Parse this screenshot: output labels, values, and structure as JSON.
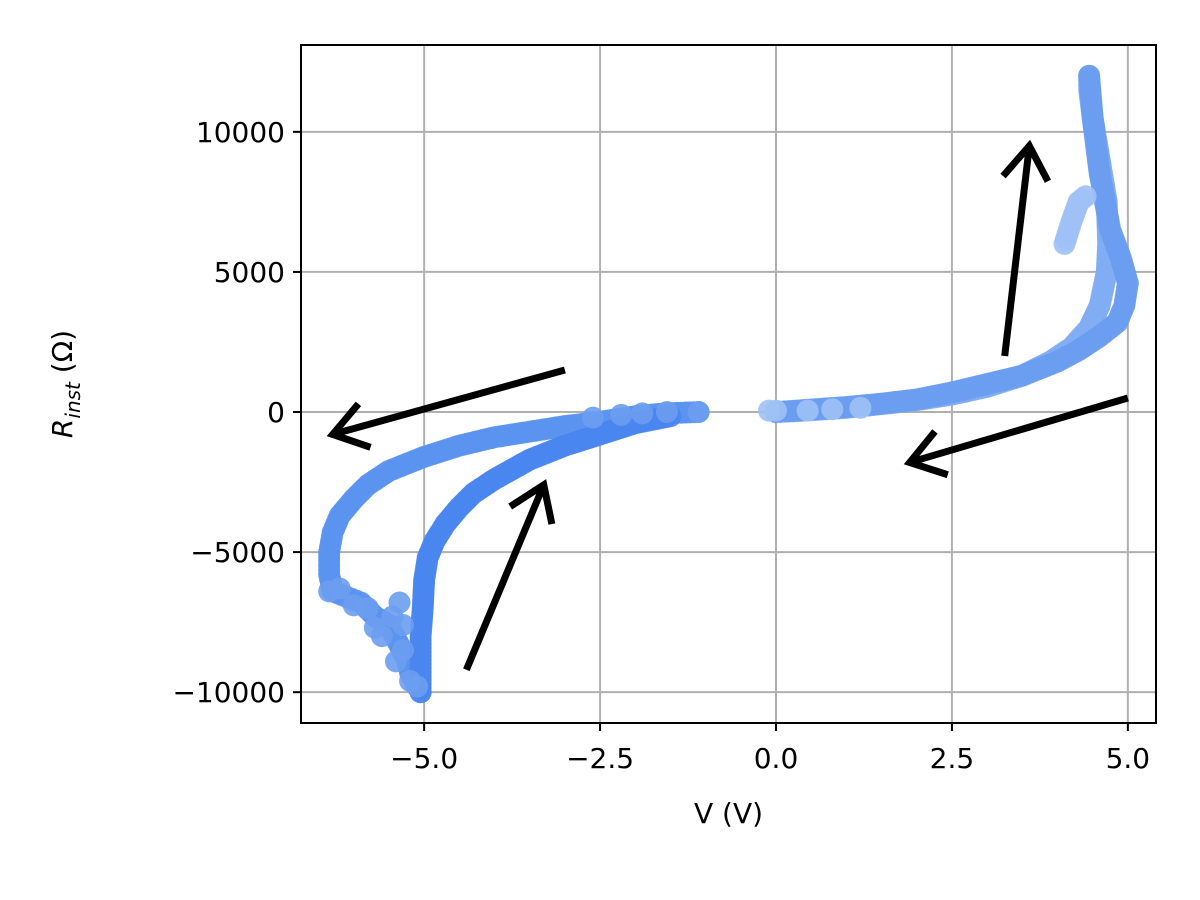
{
  "chart_data": {
    "type": "scatter",
    "title": "",
    "xlabel": "V (V)",
    "ylabel": {
      "base": "R",
      "subscript": "inst",
      "unit": " (Ω)"
    },
    "xlim": [
      -6.75,
      5.4
    ],
    "ylim": [
      -11100,
      13100
    ],
    "xticks": [
      -5.0,
      -2.5,
      0.0,
      2.5,
      5.0
    ],
    "xtick_labels": [
      "−5.0",
      "−2.5",
      "0.0",
      "2.5",
      "5.0"
    ],
    "yticks": [
      -10000,
      -5000,
      0,
      5000,
      10000
    ],
    "ytick_labels": [
      "−10000",
      "−5000",
      "0",
      "5000",
      "10000"
    ],
    "grid": true,
    "marker_colors": [
      "#4a86ee",
      "#5b93ef",
      "#6b9df0",
      "#80adf3",
      "#9fc1f6"
    ],
    "series": [
      {
        "color": "#80adf3",
        "points": [
          [
            0.0,
            0
          ],
          [
            0.3,
            30
          ],
          [
            0.6,
            80
          ],
          [
            1.0,
            150
          ],
          [
            1.5,
            280
          ],
          [
            2.0,
            420
          ],
          [
            2.5,
            620
          ],
          [
            3.0,
            900
          ],
          [
            3.5,
            1300
          ],
          [
            3.9,
            1800
          ],
          [
            4.2,
            2300
          ],
          [
            4.45,
            3000
          ],
          [
            4.6,
            3800
          ],
          [
            4.7,
            5000
          ],
          [
            4.72,
            6000
          ],
          [
            4.7,
            7500
          ],
          [
            4.6,
            9000
          ],
          [
            4.5,
            10500
          ],
          [
            4.45,
            11500
          ],
          [
            4.45,
            12000
          ]
        ]
      },
      {
        "color": "#6b9df0",
        "points": [
          [
            4.45,
            12000
          ],
          [
            4.5,
            10500
          ],
          [
            4.6,
            8500
          ],
          [
            4.75,
            6500
          ],
          [
            4.9,
            5500
          ],
          [
            5.0,
            4600
          ],
          [
            4.95,
            3800
          ],
          [
            4.85,
            3200
          ],
          [
            4.6,
            2700
          ],
          [
            4.3,
            2200
          ],
          [
            4.0,
            1800
          ],
          [
            3.5,
            1300
          ],
          [
            3.0,
            1000
          ],
          [
            2.5,
            700
          ],
          [
            2.0,
            450
          ],
          [
            1.5,
            300
          ],
          [
            1.0,
            180
          ],
          [
            0.5,
            90
          ],
          [
            0.0,
            0
          ]
        ]
      },
      {
        "color": "#9fc1f6",
        "points": [
          [
            4.1,
            6000
          ],
          [
            4.2,
            6800
          ],
          [
            4.3,
            7500
          ],
          [
            4.4,
            7700
          ]
        ]
      },
      {
        "color": "#5b93ef",
        "points": [
          [
            -1.1,
            0
          ],
          [
            -1.6,
            -50
          ],
          [
            -2.0,
            -150
          ],
          [
            -2.5,
            -350
          ],
          [
            -3.0,
            -500
          ],
          [
            -3.5,
            -700
          ],
          [
            -4.0,
            -900
          ],
          [
            -4.5,
            -1200
          ],
          [
            -5.0,
            -1600
          ],
          [
            -5.5,
            -2100
          ],
          [
            -5.8,
            -2600
          ],
          [
            -6.0,
            -3100
          ],
          [
            -6.2,
            -3700
          ],
          [
            -6.3,
            -4300
          ],
          [
            -6.35,
            -5000
          ],
          [
            -6.35,
            -5800
          ],
          [
            -6.3,
            -6400
          ],
          [
            -6.1,
            -6600
          ],
          [
            -5.9,
            -6800
          ],
          [
            -5.7,
            -7300
          ],
          [
            -5.5,
            -7600
          ],
          [
            -5.4,
            -8100
          ],
          [
            -5.25,
            -8800
          ],
          [
            -5.2,
            -9300
          ],
          [
            -5.1,
            -9700
          ],
          [
            -5.05,
            -10000
          ]
        ]
      },
      {
        "color": "#4a86ee",
        "points": [
          [
            -5.05,
            -10000
          ],
          [
            -5.05,
            -9000
          ],
          [
            -5.05,
            -8000
          ],
          [
            -5.02,
            -7000
          ],
          [
            -5.0,
            -6000
          ],
          [
            -4.95,
            -5200
          ],
          [
            -4.85,
            -4600
          ],
          [
            -4.7,
            -4000
          ],
          [
            -4.5,
            -3400
          ],
          [
            -4.3,
            -2900
          ],
          [
            -4.0,
            -2400
          ],
          [
            -3.5,
            -1700
          ],
          [
            -3.0,
            -1200
          ],
          [
            -2.5,
            -800
          ],
          [
            -2.0,
            -400
          ],
          [
            -1.5,
            -150
          ]
        ]
      }
    ],
    "scatter_extra": [
      {
        "color": "#6b9df0",
        "points": [
          [
            -1.1,
            0
          ],
          [
            -1.55,
            0
          ],
          [
            -1.9,
            -50
          ],
          [
            -2.2,
            -100
          ],
          [
            -2.6,
            -200
          ]
        ]
      },
      {
        "color": "#9fc1f6",
        "points": [
          [
            -0.1,
            50
          ],
          [
            0.0,
            50
          ],
          [
            0.45,
            50
          ],
          [
            0.8,
            100
          ],
          [
            1.2,
            150
          ]
        ]
      },
      {
        "color": "#6b9df0",
        "points": [
          [
            -6.35,
            -6400
          ],
          [
            -6.2,
            -6300
          ],
          [
            -6.0,
            -6900
          ],
          [
            -5.8,
            -7000
          ],
          [
            -5.7,
            -7700
          ],
          [
            -5.6,
            -8000
          ],
          [
            -5.45,
            -7300
          ],
          [
            -5.35,
            -6800
          ],
          [
            -5.3,
            -7600
          ],
          [
            -5.3,
            -8500
          ],
          [
            -5.4,
            -8900
          ],
          [
            -5.2,
            -9600
          ],
          [
            -5.1,
            -9800
          ]
        ]
      }
    ],
    "annotations": [
      {
        "type": "arrow",
        "from": [
          -3.0,
          1500
        ],
        "to": [
          -6.3,
          -800
        ]
      },
      {
        "type": "arrow",
        "from": [
          -4.4,
          -9200
        ],
        "to": [
          -3.3,
          -2600
        ]
      },
      {
        "type": "arrow",
        "from": [
          3.25,
          2000
        ],
        "to": [
          3.6,
          9500
        ]
      },
      {
        "type": "arrow",
        "from": [
          5.0,
          500
        ],
        "to": [
          1.9,
          -1800
        ]
      }
    ]
  }
}
